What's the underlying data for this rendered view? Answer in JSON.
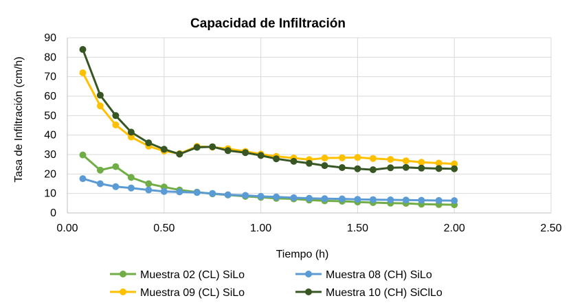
{
  "chart_data": {
    "type": "line",
    "title": "Capacidad de Infiltración",
    "xlabel": "Tiempo (h)",
    "ylabel": "Tasa de Infiltración (cm/h)",
    "xlim": [
      0,
      2.5
    ],
    "ylim": [
      0,
      90
    ],
    "x_ticks": [
      "0.00",
      "0.50",
      "1.00",
      "1.50",
      "2.00",
      "2.50"
    ],
    "y_ticks": [
      "0",
      "10",
      "20",
      "30",
      "40",
      "50",
      "60",
      "70",
      "80",
      "90"
    ],
    "grid": true,
    "legend_position": "bottom",
    "series": [
      {
        "name": "Muestra 02 (CL) SiLo",
        "color": "#70ad47",
        "points": [
          [
            0.08,
            29.8
          ],
          [
            0.17,
            22.0
          ],
          [
            0.25,
            23.8
          ],
          [
            0.33,
            18.2
          ],
          [
            0.42,
            15.0
          ],
          [
            0.5,
            13.3
          ],
          [
            0.58,
            11.8
          ],
          [
            0.67,
            10.7
          ],
          [
            0.75,
            9.8
          ],
          [
            0.83,
            9.2
          ],
          [
            0.92,
            8.5
          ],
          [
            1.0,
            8.0
          ],
          [
            1.08,
            7.5
          ],
          [
            1.17,
            7.2
          ],
          [
            1.25,
            6.6
          ],
          [
            1.33,
            6.2
          ],
          [
            1.42,
            6.0
          ],
          [
            1.5,
            5.6
          ],
          [
            1.58,
            5.3
          ],
          [
            1.67,
            5.0
          ],
          [
            1.75,
            4.9
          ],
          [
            1.83,
            4.5
          ],
          [
            1.92,
            4.3
          ],
          [
            2.0,
            4.2
          ]
        ]
      },
      {
        "name": "Muestra 08 (CH) SiLo",
        "color": "#5b9bd5",
        "points": [
          [
            0.08,
            17.6
          ],
          [
            0.17,
            15.0
          ],
          [
            0.25,
            13.5
          ],
          [
            0.33,
            12.8
          ],
          [
            0.42,
            11.8
          ],
          [
            0.5,
            11.0
          ],
          [
            0.58,
            10.8
          ],
          [
            0.67,
            10.5
          ],
          [
            0.75,
            10.0
          ],
          [
            0.83,
            9.3
          ],
          [
            0.92,
            9.0
          ],
          [
            1.0,
            8.5
          ],
          [
            1.08,
            8.2
          ],
          [
            1.17,
            7.8
          ],
          [
            1.25,
            7.5
          ],
          [
            1.33,
            7.3
          ],
          [
            1.42,
            7.2
          ],
          [
            1.5,
            7.0
          ],
          [
            1.58,
            6.8
          ],
          [
            1.67,
            6.7
          ],
          [
            1.75,
            6.6
          ],
          [
            1.83,
            6.5
          ],
          [
            1.92,
            6.4
          ],
          [
            2.0,
            6.3
          ]
        ]
      },
      {
        "name": "Muestra 09 (CL) SiLo",
        "color": "#ffc000",
        "points": [
          [
            0.08,
            72.0
          ],
          [
            0.17,
            55.0
          ],
          [
            0.25,
            45.2
          ],
          [
            0.33,
            39.0
          ],
          [
            0.42,
            34.3
          ],
          [
            0.5,
            31.8
          ],
          [
            0.58,
            30.5
          ],
          [
            0.67,
            34.2
          ],
          [
            0.75,
            33.8
          ],
          [
            0.83,
            33.0
          ],
          [
            0.92,
            31.6
          ],
          [
            1.0,
            30.2
          ],
          [
            1.08,
            29.0
          ],
          [
            1.17,
            28.2
          ],
          [
            1.25,
            27.4
          ],
          [
            1.33,
            28.2
          ],
          [
            1.42,
            28.3
          ],
          [
            1.5,
            28.5
          ],
          [
            1.58,
            28.0
          ],
          [
            1.67,
            27.5
          ],
          [
            1.75,
            26.8
          ],
          [
            1.83,
            26.0
          ],
          [
            1.92,
            25.6
          ],
          [
            2.0,
            25.2
          ]
        ]
      },
      {
        "name": "Muestra 10 (CH) SiClLo",
        "color": "#375623",
        "points": [
          [
            0.08,
            84.0
          ],
          [
            0.17,
            60.5
          ],
          [
            0.25,
            50.0
          ],
          [
            0.33,
            41.5
          ],
          [
            0.42,
            36.0
          ],
          [
            0.5,
            32.7
          ],
          [
            0.58,
            30.2
          ],
          [
            0.67,
            33.7
          ],
          [
            0.75,
            34.0
          ],
          [
            0.83,
            32.0
          ],
          [
            0.92,
            31.0
          ],
          [
            1.0,
            29.5
          ],
          [
            1.08,
            27.8
          ],
          [
            1.17,
            26.5
          ],
          [
            1.25,
            25.5
          ],
          [
            1.33,
            24.3
          ],
          [
            1.42,
            23.3
          ],
          [
            1.5,
            22.7
          ],
          [
            1.58,
            22.2
          ],
          [
            1.67,
            23.2
          ],
          [
            1.75,
            23.4
          ],
          [
            1.83,
            23.0
          ],
          [
            1.92,
            22.8
          ],
          [
            2.0,
            22.7
          ]
        ]
      }
    ]
  }
}
